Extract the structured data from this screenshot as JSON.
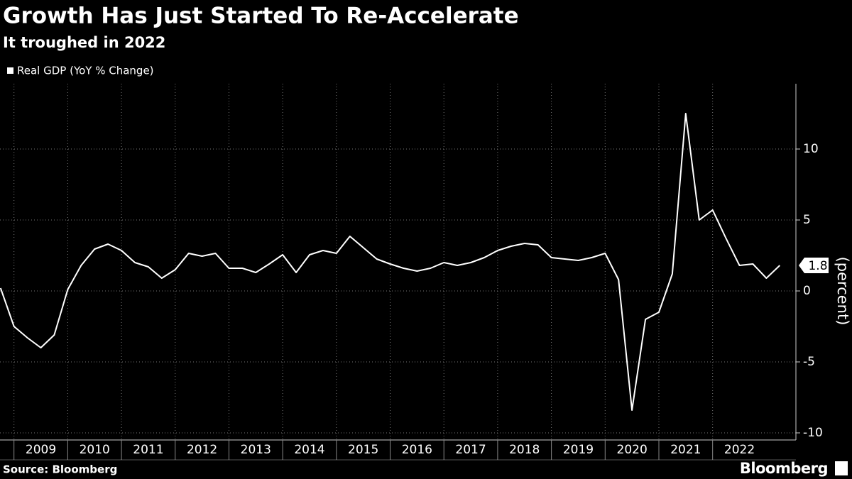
{
  "chart_data": {
    "type": "line",
    "title": "Growth Has Just Started To Re-Accelerate",
    "subtitle": "It troughed in 2022",
    "y_axis_label": "(percent)",
    "source": "Source: Bloomberg",
    "brand": "Bloomberg",
    "x": [
      2008.75,
      2009,
      2009.25,
      2009.5,
      2009.75,
      2010,
      2010.25,
      2010.5,
      2010.75,
      2011,
      2011.25,
      2011.5,
      2011.75,
      2012,
      2012.25,
      2012.5,
      2012.75,
      2013,
      2013.25,
      2013.5,
      2013.75,
      2014,
      2014.25,
      2014.5,
      2014.75,
      2015,
      2015.25,
      2015.5,
      2015.75,
      2016,
      2016.25,
      2016.5,
      2016.75,
      2017,
      2017.25,
      2017.5,
      2017.75,
      2018,
      2018.25,
      2018.5,
      2018.75,
      2019,
      2019.25,
      2019.5,
      2019.75,
      2020,
      2020.25,
      2020.5,
      2020.75,
      2021,
      2021.25,
      2021.5,
      2021.75,
      2022,
      2022.25,
      2022.5,
      2022.75,
      2023,
      2023.25
    ],
    "series": [
      {
        "name": "Real GDP (YoY % Change)",
        "color": "#ffffff",
        "values": [
          0.2,
          -2.5,
          -3.3,
          -4.0,
          -3.1,
          0.1,
          1.8,
          2.95,
          3.3,
          2.85,
          2.0,
          1.7,
          0.9,
          1.5,
          2.65,
          2.45,
          2.65,
          1.6,
          1.6,
          1.3,
          1.9,
          2.55,
          1.3,
          2.55,
          2.85,
          2.65,
          3.85,
          3.05,
          2.25,
          1.9,
          1.6,
          1.4,
          1.6,
          2.0,
          1.8,
          2.0,
          2.35,
          2.85,
          3.15,
          3.35,
          3.25,
          2.35,
          2.25,
          2.15,
          2.35,
          2.65,
          0.8,
          -8.4,
          -2.0,
          -1.5,
          1.2,
          12.5,
          5.0,
          5.7,
          3.7,
          1.8,
          1.9,
          0.9,
          1.8
        ]
      }
    ],
    "xlim": [
      2008.74,
      2023.55
    ],
    "xticks": [
      2009,
      2010,
      2011,
      2012,
      2013,
      2014,
      2015,
      2016,
      2017,
      2018,
      2019,
      2020,
      2021,
      2022
    ],
    "ylim": [
      -10.5,
      14.6
    ],
    "yticks": [
      -10,
      -5,
      0,
      5,
      10
    ],
    "y_axis_side": "right",
    "grid": true
  }
}
